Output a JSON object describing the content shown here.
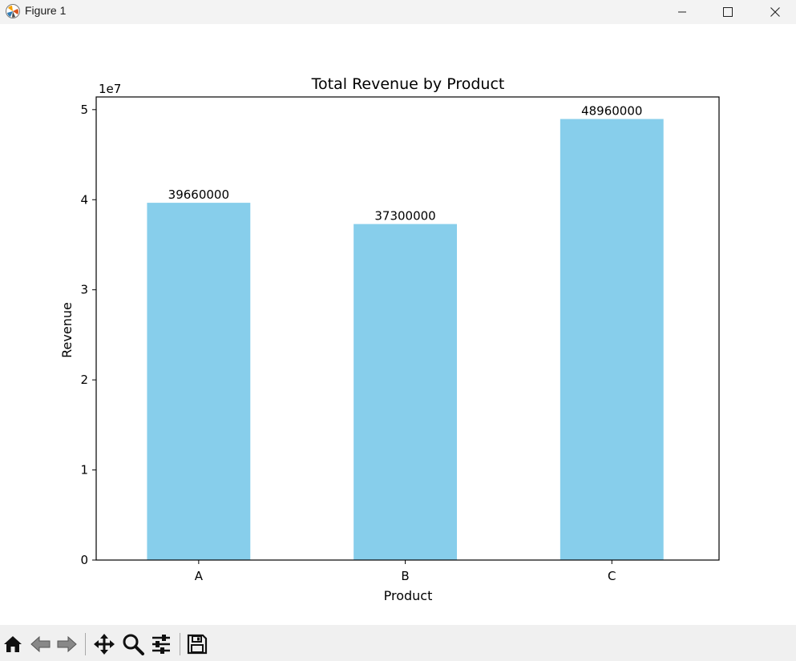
{
  "window": {
    "title": "Figure 1",
    "controls": [
      "minimize",
      "maximize",
      "close"
    ]
  },
  "toolbar": {
    "tools": [
      {
        "name": "home-icon",
        "label": "Home"
      },
      {
        "name": "back-icon",
        "label": "Back"
      },
      {
        "name": "forward-icon",
        "label": "Forward"
      },
      {
        "name": "pan-icon",
        "label": "Pan"
      },
      {
        "name": "zoom-icon",
        "label": "Zoom"
      },
      {
        "name": "configure-subplots-icon",
        "label": "Configure subplots"
      },
      {
        "name": "save-icon",
        "label": "Save"
      }
    ]
  },
  "colors": {
    "bar": "#87ceeb",
    "titlebar": "#f3f3f3",
    "toolbar": "#f0f0f0"
  },
  "chart_data": {
    "type": "bar",
    "title": "Total Revenue by Product",
    "xlabel": "Product",
    "ylabel": "Revenue",
    "offset_text": "1e7",
    "categories": [
      "A",
      "B",
      "C"
    ],
    "values": [
      39660000,
      37300000,
      48960000
    ],
    "data_labels": [
      "39660000",
      "37300000",
      "48960000"
    ],
    "ylim": [
      0,
      51408000
    ],
    "yticks": [
      0,
      10000000,
      20000000,
      30000000,
      40000000,
      50000000
    ],
    "ytick_labels": [
      "0",
      "1",
      "2",
      "3",
      "4",
      "5"
    ],
    "grid": false,
    "bar_color": "#87ceeb"
  }
}
